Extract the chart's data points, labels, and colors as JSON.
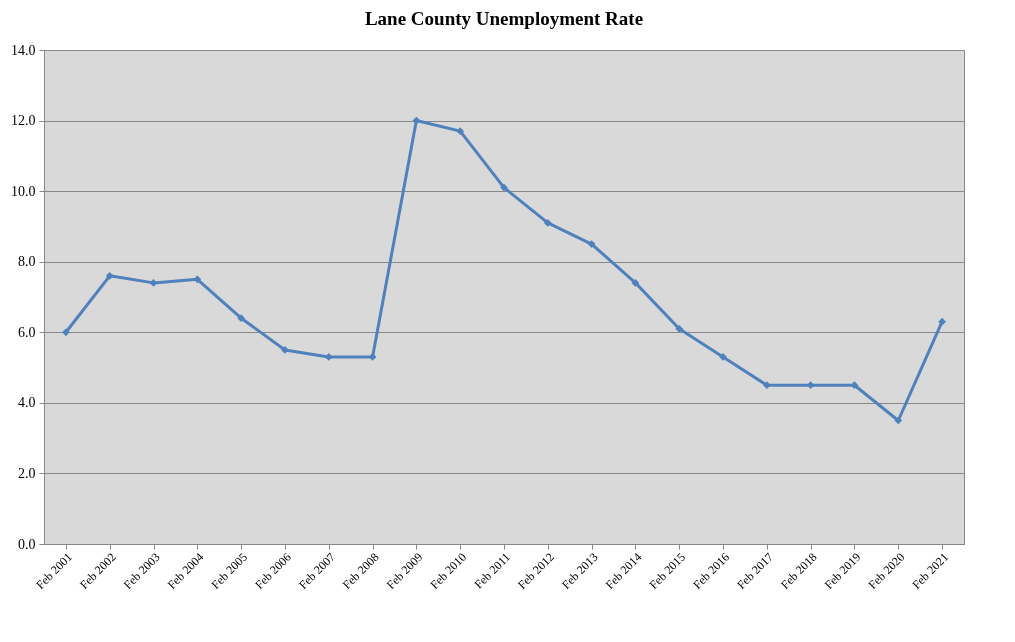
{
  "chart_data": {
    "type": "line",
    "title": "Lane County Unemployment Rate",
    "categories": [
      "Feb 2001",
      "Feb 2002",
      "Feb 2003",
      "Feb 2004",
      "Feb 2005",
      "Feb 2006",
      "Feb 2007",
      "Feb 2008",
      "Feb 2009",
      "Feb 2010",
      "Feb 2011",
      "Feb 2012",
      "Feb 2013",
      "Feb 2014",
      "Feb 2015",
      "Feb 2016",
      "Feb 2017",
      "Feb 2018",
      "Feb 2019",
      "Feb 2020",
      "Feb 2021"
    ],
    "series": [
      {
        "color": "#4f81bd",
        "values": [
          6.0,
          7.6,
          7.4,
          7.5,
          6.4,
          5.5,
          5.3,
          5.3,
          12.0,
          11.7,
          10.1,
          9.1,
          8.5,
          7.4,
          6.1,
          5.3,
          4.5,
          4.5,
          4.5,
          3.5,
          6.3
        ]
      }
    ],
    "ylim": [
      0,
      14
    ],
    "yticks": [
      {
        "value": 0,
        "label": "0.0"
      },
      {
        "value": 2,
        "label": "2.0"
      },
      {
        "value": 4,
        "label": "4.0"
      },
      {
        "value": 6,
        "label": "6.0"
      },
      {
        "value": 8,
        "label": "8.0"
      },
      {
        "value": 10,
        "label": "10.0"
      },
      {
        "value": 12,
        "label": "12.0"
      },
      {
        "value": 14,
        "label": "14.0"
      }
    ],
    "grid": "y",
    "marker": "diamond",
    "line_style": "solid"
  }
}
